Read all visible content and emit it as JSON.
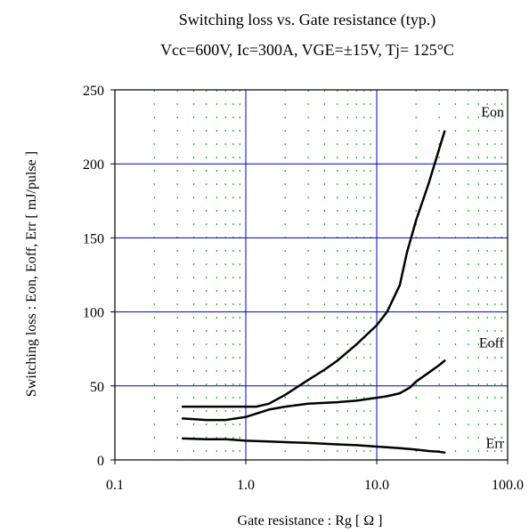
{
  "chart_data": {
    "type": "line",
    "title": "Switching loss  vs.  Gate resistance (typ.)",
    "subtitle": "Vcc=600V, Ic=300A, VGE=±15V, Tj= 125°C",
    "xlabel": "Gate resistance  :  Rg  [ Ω ]",
    "ylabel": "Switching loss  :  Eon, Eoff, Err  [ mJ/pulse ]",
    "x_scale": "log",
    "xlim": [
      0.1,
      100
    ],
    "ylim": [
      0,
      250
    ],
    "x_ticks": [
      0.1,
      1,
      10,
      100
    ],
    "x_tick_labels": [
      "0.1",
      "1.0",
      "10.0",
      "100.0"
    ],
    "y_ticks": [
      0,
      50,
      100,
      150,
      200,
      250
    ],
    "y_tick_labels": [
      "0",
      "50",
      "100",
      "150",
      "200",
      "250"
    ],
    "grid": {
      "major": true,
      "minor_x": true
    },
    "colors": {
      "major_grid": "#0000c0",
      "minor_grid": "#00c000",
      "line": "#000000"
    },
    "series": [
      {
        "name": "Eon",
        "x": [
          0.33,
          0.5,
          0.7,
          1.0,
          1.2,
          1.5,
          2,
          3,
          4,
          5,
          7,
          10,
          12,
          15,
          17,
          20,
          25,
          30,
          33
        ],
        "values": [
          36,
          36,
          36,
          36,
          36,
          38,
          44,
          54,
          61,
          67,
          78,
          91,
          100,
          118,
          140,
          162,
          187,
          210,
          222
        ]
      },
      {
        "name": "Eoff",
        "x": [
          0.33,
          0.5,
          0.7,
          1.0,
          1.5,
          2,
          3,
          5,
          7,
          10,
          12,
          15,
          18,
          20,
          25,
          30,
          33
        ],
        "values": [
          28,
          27,
          27,
          29,
          34,
          36,
          38,
          39,
          40,
          42,
          43,
          45,
          49,
          53,
          59,
          64,
          67
        ]
      },
      {
        "name": "Err",
        "x": [
          0.33,
          0.5,
          0.7,
          1.0,
          1.5,
          2,
          3,
          5,
          7,
          10,
          15,
          20,
          25,
          30,
          33
        ],
        "values": [
          14.5,
          14,
          14,
          13,
          12.5,
          12,
          11.5,
          10.5,
          10,
          9,
          8,
          7,
          6,
          5.5,
          5
        ]
      }
    ]
  }
}
